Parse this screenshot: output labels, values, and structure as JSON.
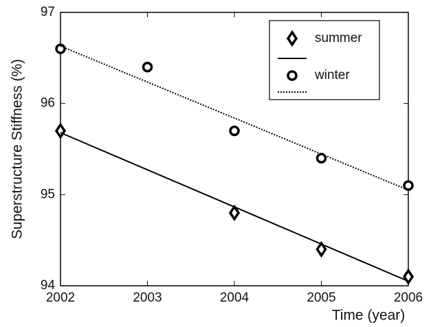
{
  "chart_data": {
    "type": "scatter",
    "y_label": "Superstructure Stiffness (%)",
    "x_label": "Time (year)",
    "xlim": [
      2002,
      2006
    ],
    "xticks": [
      2002,
      2003,
      2004,
      2005,
      2006
    ],
    "ylim": [
      94,
      97
    ],
    "yticks": [
      94,
      95,
      96,
      97
    ],
    "legend": "upper right",
    "series": [
      {
        "name": "summer",
        "marker": "diamond",
        "color": "#000000",
        "x": [
          2002,
          2004,
          2005,
          2006
        ],
        "values": [
          95.7,
          94.8,
          94.4,
          94.1
        ]
      },
      {
        "style": "line",
        "dash": "solid",
        "color": "#000000",
        "x": [
          2002,
          2006
        ],
        "values": [
          95.68,
          94.05
        ]
      },
      {
        "name": "winter",
        "marker": "circle",
        "color": "#000000",
        "x": [
          2002,
          2003,
          2004,
          2005,
          2006
        ],
        "values": [
          96.6,
          96.4,
          95.7,
          95.4,
          95.1
        ]
      },
      {
        "style": "line",
        "dash": "dotted",
        "color": "#000000",
        "x": [
          2002,
          2006
        ],
        "values": [
          96.63,
          95.05
        ]
      }
    ]
  }
}
